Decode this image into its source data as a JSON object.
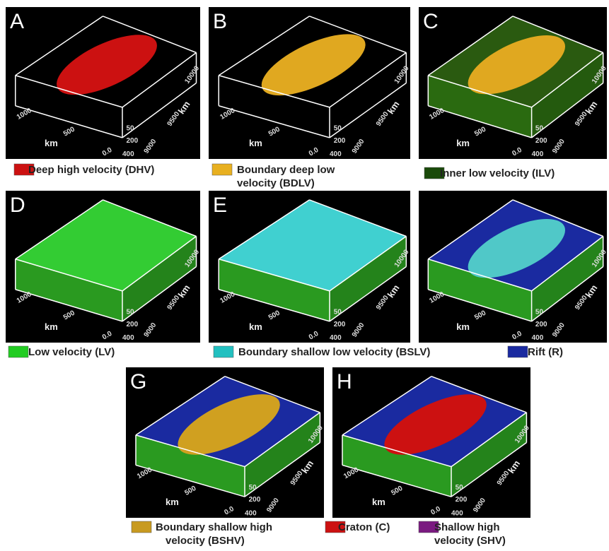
{
  "panels": [
    {
      "letter": "A",
      "axis": {
        "x_ticks": [
          "1000",
          "500",
          "0.0"
        ],
        "x_label": "km",
        "depth_ticks": [
          "50",
          "200",
          "400"
        ],
        "y_ticks": [
          "9000",
          "9500",
          "10000"
        ],
        "y_label": "km"
      }
    },
    {
      "letter": "B",
      "axis": {
        "x_ticks": [
          "1000",
          "500",
          "0.0"
        ],
        "x_label": "km",
        "depth_ticks": [
          "50",
          "200",
          "400"
        ],
        "y_ticks": [
          "9000",
          "9500",
          "10000"
        ],
        "y_label": "km"
      }
    },
    {
      "letter": "C",
      "axis": {
        "x_ticks": [
          "1000",
          "500",
          "0.0"
        ],
        "x_label": "km",
        "depth_ticks": [
          "50",
          "200",
          "400"
        ],
        "y_ticks": [
          "9000",
          "9500",
          "10000"
        ],
        "y_label": "km"
      }
    },
    {
      "letter": "D",
      "axis": {
        "x_ticks": [
          "1000",
          "500",
          "0.0"
        ],
        "x_label": "km",
        "depth_ticks": [
          "50",
          "200",
          "400"
        ],
        "y_ticks": [
          "9000",
          "9500",
          "10000"
        ],
        "y_label": "km"
      }
    },
    {
      "letter": "E",
      "axis": {
        "x_ticks": [
          "1000",
          "500",
          "0.0"
        ],
        "x_label": "km",
        "depth_ticks": [
          "50",
          "200",
          "400"
        ],
        "y_ticks": [
          "9000",
          "9500",
          "10000"
        ],
        "y_label": "km"
      }
    },
    {
      "axis": {
        "x_ticks": [
          "1000",
          "500",
          "0.0"
        ],
        "x_label": "km",
        "depth_ticks": [
          "50",
          "200",
          "400"
        ],
        "y_ticks": [
          "9000",
          "9500",
          "10000"
        ],
        "y_label": "km"
      }
    },
    {
      "letter": "G",
      "axis": {
        "x_ticks": [
          "1000",
          "500",
          "0.0"
        ],
        "x_label": "km",
        "depth_ticks": [
          "50",
          "200",
          "400"
        ],
        "y_ticks": [
          "9000",
          "9500",
          "10000"
        ],
        "y_label": "km"
      }
    },
    {
      "letter": "H",
      "axis": {
        "x_ticks": [
          "1000",
          "500",
          "0.0"
        ],
        "x_label": "km",
        "depth_ticks": [
          "50",
          "200",
          "400"
        ],
        "y_ticks": [
          "9000",
          "9500",
          "10000"
        ],
        "y_label": "km"
      }
    }
  ],
  "legend": [
    {
      "lines": [
        "Deep high velocity (DHV)"
      ],
      "color": "#cc1111"
    },
    {
      "lines": [
        "Boundary deep low",
        "velocity (BDLV)"
      ],
      "color": "#e8b020"
    },
    {
      "lines": [
        "Inner low velocity (ILV)"
      ],
      "color": "#1a4a0a"
    },
    {
      "lines": [
        "Low velocity (LV)"
      ],
      "color": "#22cc22"
    },
    {
      "lines": [
        "Boundary shallow low velocity (BSLV)"
      ],
      "color": "#22c0c0"
    },
    {
      "lines": [
        "Rift (R)"
      ],
      "color": "#1a2aa0"
    },
    {
      "lines": [
        "Boundary shallow high",
        "velocity (BSHV)"
      ],
      "color": "#c89a20"
    },
    {
      "lines": [
        "Craton (C)"
      ],
      "color": "#cc1111"
    },
    {
      "lines": [
        "Shallow high",
        "velocity (SHV)"
      ],
      "color": "#7a1a80"
    }
  ]
}
